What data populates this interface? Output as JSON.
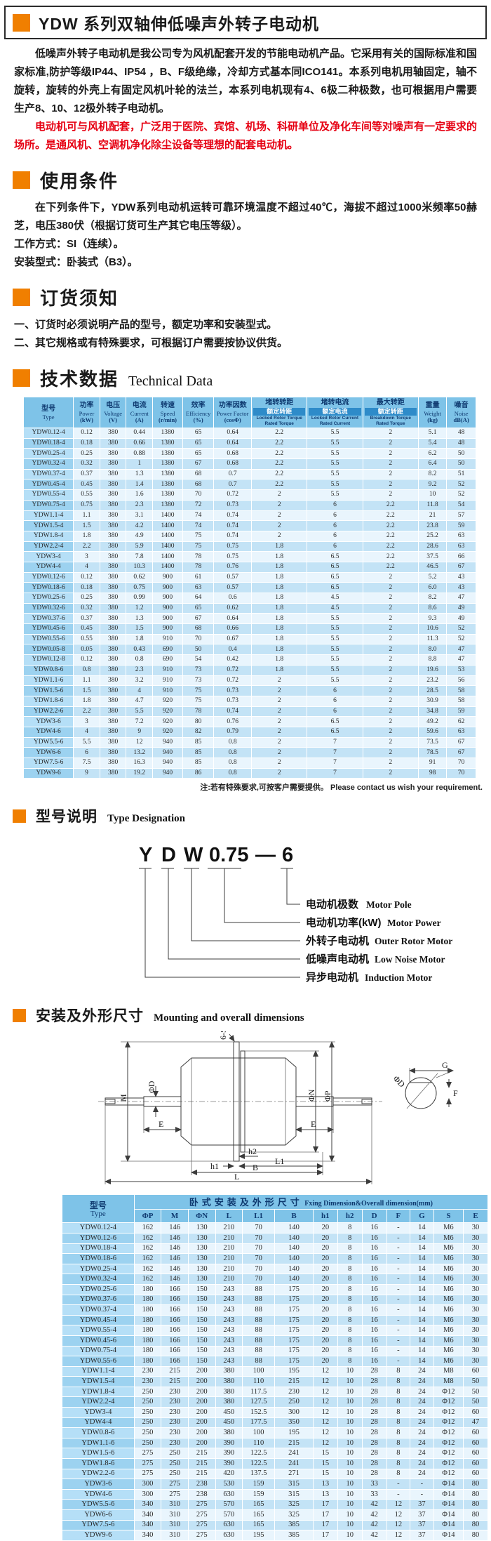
{
  "title": {
    "text": "YDW 系列双轴伸低噪声外转子电动机"
  },
  "intro": {
    "p1": "低噪声外转子电动机是我公司专为风机配套开发的节能电动机产品。它采用有关的国际标准和国家标准,防护等级IP44、IP54 ，B、F级绝缘，冷却方式基本同ICO141。本系列电机用轴固定，轴不旋转，旋转的外壳上有固定风机叶轮的法兰，本系列电机现有4、6极二种极数，也可根据用户需要生产8、10、12极外转子电动机。",
    "p2_red": "电动机可与风机配套，广泛用于医院、宾馆、机场、科研单位及净化车间等对噪声有一定要求的场所。是通风机、空调机净化除尘设备等理想的配套电动机。"
  },
  "sections": {
    "usage": {
      "title": "使用条件",
      "body": "在下列条件下，YDW系列电动机运转可靠环境温度不超过40℃，海拔不超过1000米频率50赫芝，电压380伏（根据订货可生产其它电压等级）。",
      "work_mode": "工作方式：SI（连续）。",
      "mount_type": "安装型式：卧装式（B3）。"
    },
    "ordering": {
      "title": "订货须知",
      "items": [
        "一、订货时必须说明产品的型号，额定功率和安装型式。",
        "二、其它规格或有特殊要求，可根据订户需要按协议供货。"
      ]
    },
    "technical": {
      "title": "技术数据",
      "subtitle": "Technical Data",
      "note": "注:若有特殊要求,可按客户需要提供。 Please contact us wish your requirement."
    },
    "designation": {
      "title": "型号说明",
      "subtitle": "Type Designation",
      "code": [
        "Y",
        "D",
        "W",
        "0.75",
        "—",
        "6"
      ],
      "labels": [
        {
          "cn": "电动机极数",
          "en": "Motor Pole"
        },
        {
          "cn": "电动机功率(kW)",
          "en": "Motor Power"
        },
        {
          "cn": "外转子电动机",
          "en": "Outer Rotor Motor"
        },
        {
          "cn": "低噪声电动机",
          "en": "Low Noise Motor"
        },
        {
          "cn": "异步电动机",
          "en": "Induction Motor"
        }
      ]
    },
    "mounting": {
      "title": "安装及外形尺寸",
      "subtitle": "Mounting and overall dimensions",
      "drawing_labels": {
        "bolts": "6-S",
        "m": "M",
        "phiD": "ΦD",
        "e_left": "E",
        "e_right": "E",
        "phiN": "ΦN",
        "phiP": "ΦP",
        "g": "G",
        "f": "F",
        "phiD2": "ΦD",
        "h1": "h1",
        "h2": "h2",
        "l1": "L1",
        "b": "B",
        "l": "L"
      }
    }
  },
  "tech_table": {
    "col_headers": [
      {
        "cn": "型号",
        "en": "Type"
      },
      {
        "cn": "功率",
        "en": "Power",
        "unit": "(kW)"
      },
      {
        "cn": "电压",
        "en": "Voltage",
        "unit": "(V)"
      },
      {
        "cn": "电流",
        "en": "Current",
        "unit": "(A)"
      },
      {
        "cn": "转速",
        "en": "Speed",
        "unit": "(r/min)"
      },
      {
        "cn": "效率",
        "en": "Efficiency",
        "unit": "(%)"
      },
      {
        "cn": "功率因数",
        "en": "Power Factor",
        "unit": "(cosΦ)"
      },
      {
        "cn": "堵转转距",
        "cn2": "额定转距",
        "en": "Locked Rotor Torque",
        "en2": "Rated Torque"
      },
      {
        "cn": "堵转电流",
        "cn2": "额定电流",
        "en": "Locked Rotor Current",
        "en2": "Rated Current"
      },
      {
        "cn": "最大转距",
        "cn2": "额定转距",
        "en": "Breakdown Torque",
        "en2": "Rated Torque"
      },
      {
        "cn": "重量",
        "en": "Weight",
        "unit": "(kg)"
      },
      {
        "cn": "噪音",
        "en": "Noise",
        "unit": "dB(A)"
      }
    ],
    "rows": [
      [
        "YDW0.12-4",
        "0.12",
        "380",
        "0.44",
        "1380",
        "65",
        "0.64",
        "2.2",
        "5.5",
        "2",
        "5.1",
        "48"
      ],
      [
        "YDW0.18-4",
        "0.18",
        "380",
        "0.66",
        "1380",
        "65",
        "0.64",
        "2.2",
        "5.5",
        "2",
        "5.4",
        "48"
      ],
      [
        "YDW0.25-4",
        "0.25",
        "380",
        "0.88",
        "1380",
        "65",
        "0.68",
        "2.2",
        "5.5",
        "2",
        "6.2",
        "50"
      ],
      [
        "YDW0.32-4",
        "0.32",
        "380",
        "1",
        "1380",
        "67",
        "0.68",
        "2.2",
        "5.5",
        "2",
        "6.4",
        "50"
      ],
      [
        "YDW0.37-4",
        "0.37",
        "380",
        "1.3",
        "1380",
        "68",
        "0.7",
        "2.2",
        "5.5",
        "2",
        "8.2",
        "51"
      ],
      [
        "YDW0.45-4",
        "0.45",
        "380",
        "1.4",
        "1380",
        "68",
        "0.7",
        "2.2",
        "5.5",
        "2",
        "9.2",
        "52"
      ],
      [
        "YDW0.55-4",
        "0.55",
        "380",
        "1.6",
        "1380",
        "70",
        "0.72",
        "2",
        "5.5",
        "2",
        "10",
        "52"
      ],
      [
        "YDW0.75-4",
        "0.75",
        "380",
        "2.3",
        "1380",
        "72",
        "0.73",
        "2",
        "6",
        "2.2",
        "11.8",
        "54"
      ],
      [
        "YDW1.1-4",
        "1.1",
        "380",
        "3.1",
        "1400",
        "74",
        "0.74",
        "2",
        "6",
        "2.2",
        "21",
        "57"
      ],
      [
        "YDW1.5-4",
        "1.5",
        "380",
        "4.2",
        "1400",
        "74",
        "0.74",
        "2",
        "6",
        "2.2",
        "23.8",
        "59"
      ],
      [
        "YDW1.8-4",
        "1.8",
        "380",
        "4.9",
        "1400",
        "75",
        "0.74",
        "2",
        "6",
        "2.2",
        "25.2",
        "63"
      ],
      [
        "YDW2.2-4",
        "2.2",
        "380",
        "5.9",
        "1400",
        "75",
        "0.75",
        "1.8",
        "6",
        "2.2",
        "28.6",
        "63"
      ],
      [
        "YDW3-4",
        "3",
        "380",
        "7.8",
        "1400",
        "78",
        "0.75",
        "1.8",
        "6.5",
        "2.2",
        "37.5",
        "66"
      ],
      [
        "YDW4-4",
        "4",
        "380",
        "10.3",
        "1400",
        "78",
        "0.76",
        "1.8",
        "6.5",
        "2.2",
        "46.5",
        "67"
      ],
      [
        "YDW0.12-6",
        "0.12",
        "380",
        "0.62",
        "900",
        "61",
        "0.57",
        "1.8",
        "6.5",
        "2",
        "5.2",
        "43"
      ],
      [
        "YDW0.18-6",
        "0.18",
        "380",
        "0.75",
        "900",
        "63",
        "0.57",
        "1.8",
        "6.5",
        "2",
        "6.0",
        "43"
      ],
      [
        "YDW0.25-6",
        "0.25",
        "380",
        "0.99",
        "900",
        "64",
        "0.6",
        "1.8",
        "4.5",
        "2",
        "8.2",
        "47"
      ],
      [
        "YDW0.32-6",
        "0.32",
        "380",
        "1.2",
        "900",
        "65",
        "0.62",
        "1.8",
        "4.5",
        "2",
        "8.6",
        "49"
      ],
      [
        "YDW0.37-6",
        "0.37",
        "380",
        "1.3",
        "900",
        "67",
        "0.64",
        "1.8",
        "5.5",
        "2",
        "9.3",
        "49"
      ],
      [
        "YDW0.45-6",
        "0.45",
        "380",
        "1.5",
        "900",
        "68",
        "0.66",
        "1.8",
        "5.5",
        "2",
        "10.6",
        "52"
      ],
      [
        "YDW0.55-6",
        "0.55",
        "380",
        "1.8",
        "910",
        "70",
        "0.67",
        "1.8",
        "5.5",
        "2",
        "11.3",
        "52"
      ],
      [
        "YDW0.05-8",
        "0.05",
        "380",
        "0.43",
        "690",
        "50",
        "0.4",
        "1.8",
        "5.5",
        "2",
        "8.0",
        "47"
      ],
      [
        "YDW0.12-8",
        "0.12",
        "380",
        "0.8",
        "690",
        "54",
        "0.42",
        "1.8",
        "5.5",
        "2",
        "8.8",
        "47"
      ],
      [
        "YDW0.8-6",
        "0.8",
        "380",
        "2.3",
        "910",
        "73",
        "0.72",
        "1.8",
        "5.5",
        "2",
        "19.6",
        "53"
      ],
      [
        "YDW1.1-6",
        "1.1",
        "380",
        "3.2",
        "910",
        "73",
        "0.72",
        "2",
        "5.5",
        "2",
        "23.2",
        "56"
      ],
      [
        "YDW1.5-6",
        "1.5",
        "380",
        "4",
        "910",
        "75",
        "0.73",
        "2",
        "6",
        "2",
        "28.5",
        "58"
      ],
      [
        "YDW1.8-6",
        "1.8",
        "380",
        "4.7",
        "920",
        "75",
        "0.73",
        "2",
        "6",
        "2",
        "30.9",
        "58"
      ],
      [
        "YDW2.2-6",
        "2.2",
        "380",
        "5.5",
        "920",
        "78",
        "0.74",
        "2",
        "6",
        "2",
        "34.8",
        "59"
      ],
      [
        "YDW3-6",
        "3",
        "380",
        "7.2",
        "920",
        "80",
        "0.76",
        "2",
        "6.5",
        "2",
        "49.2",
        "62"
      ],
      [
        "YDW4-6",
        "4",
        "380",
        "9",
        "920",
        "82",
        "0.79",
        "2",
        "6.5",
        "2",
        "59.6",
        "63"
      ],
      [
        "YDW5.5-6",
        "5.5",
        "380",
        "12",
        "940",
        "85",
        "0.8",
        "2",
        "7",
        "2",
        "73.5",
        "67"
      ],
      [
        "YDW6-6",
        "6",
        "380",
        "13.2",
        "940",
        "85",
        "0.8",
        "2",
        "7",
        "2",
        "78.5",
        "67"
      ],
      [
        "YDW7.5-6",
        "7.5",
        "380",
        "16.3",
        "940",
        "85",
        "0.8",
        "2",
        "7",
        "2",
        "91",
        "70"
      ],
      [
        "YDW9-6",
        "9",
        "380",
        "19.2",
        "940",
        "86",
        "0.8",
        "2",
        "7",
        "2",
        "98",
        "70"
      ]
    ]
  },
  "dim_table": {
    "type_header": {
      "cn": "型号",
      "en": "Type"
    },
    "span_header": {
      "cn": "卧式安装及外形尺寸",
      "en": "Fxing Dimension&Overall dimension(mm)"
    },
    "col_headers": [
      "ΦP",
      "M",
      "ΦN",
      "L",
      "L1",
      "B",
      "h1",
      "h2",
      "D",
      "F",
      "G",
      "S",
      "E"
    ],
    "rows": [
      [
        "YDW0.12-4",
        "162",
        "146",
        "130",
        "210",
        "70",
        "140",
        "20",
        "8",
        "16",
        "-",
        "14",
        "M6",
        "30"
      ],
      [
        "YDW0.12-6",
        "162",
        "146",
        "130",
        "210",
        "70",
        "140",
        "20",
        "8",
        "16",
        "-",
        "14",
        "M6",
        "30"
      ],
      [
        "YDW0.18-4",
        "162",
        "146",
        "130",
        "210",
        "70",
        "140",
        "20",
        "8",
        "16",
        "-",
        "14",
        "M6",
        "30"
      ],
      [
        "YDW0.18-6",
        "162",
        "146",
        "130",
        "210",
        "70",
        "140",
        "20",
        "8",
        "16",
        "-",
        "14",
        "M6",
        "30"
      ],
      [
        "YDW0.25-4",
        "162",
        "146",
        "130",
        "210",
        "70",
        "140",
        "20",
        "8",
        "16",
        "-",
        "14",
        "M6",
        "30"
      ],
      [
        "YDW0.32-4",
        "162",
        "146",
        "130",
        "210",
        "70",
        "140",
        "20",
        "8",
        "16",
        "-",
        "14",
        "M6",
        "30"
      ],
      [
        "YDW0.25-6",
        "180",
        "166",
        "150",
        "243",
        "88",
        "175",
        "20",
        "8",
        "16",
        "-",
        "14",
        "M6",
        "30"
      ],
      [
        "YDW0.37-6",
        "180",
        "166",
        "150",
        "243",
        "88",
        "175",
        "20",
        "8",
        "16",
        "-",
        "14",
        "M6",
        "30"
      ],
      [
        "YDW0.37-4",
        "180",
        "166",
        "150",
        "243",
        "88",
        "175",
        "20",
        "8",
        "16",
        "-",
        "14",
        "M6",
        "30"
      ],
      [
        "YDW0.45-4",
        "180",
        "166",
        "150",
        "243",
        "88",
        "175",
        "20",
        "8",
        "16",
        "-",
        "14",
        "M6",
        "30"
      ],
      [
        "YDW0.55-4",
        "180",
        "166",
        "150",
        "243",
        "88",
        "175",
        "20",
        "8",
        "16",
        "-",
        "14",
        "M6",
        "30"
      ],
      [
        "YDW0.45-6",
        "180",
        "166",
        "150",
        "243",
        "88",
        "175",
        "20",
        "8",
        "16",
        "-",
        "14",
        "M6",
        "30"
      ],
      [
        "YDW0.75-4",
        "180",
        "166",
        "150",
        "243",
        "88",
        "175",
        "20",
        "8",
        "16",
        "-",
        "14",
        "M6",
        "30"
      ],
      [
        "YDW0.55-6",
        "180",
        "166",
        "150",
        "243",
        "88",
        "175",
        "20",
        "8",
        "16",
        "-",
        "14",
        "M6",
        "30"
      ],
      [
        "YDW1.1-4",
        "230",
        "215",
        "200",
        "380",
        "100",
        "195",
        "12",
        "10",
        "28",
        "8",
        "24",
        "M8",
        "60"
      ],
      [
        "YDW1.5-4",
        "230",
        "215",
        "200",
        "380",
        "110",
        "215",
        "12",
        "10",
        "28",
        "8",
        "24",
        "M8",
        "50"
      ],
      [
        "YDW1.8-4",
        "250",
        "230",
        "200",
        "380",
        "117.5",
        "230",
        "12",
        "10",
        "28",
        "8",
        "24",
        "Φ12",
        "50"
      ],
      [
        "YDW2.2-4",
        "250",
        "230",
        "200",
        "380",
        "127.5",
        "250",
        "12",
        "10",
        "28",
        "8",
        "24",
        "Φ12",
        "50"
      ],
      [
        "YDW3-4",
        "250",
        "230",
        "200",
        "450",
        "152.5",
        "300",
        "12",
        "10",
        "28",
        "8",
        "24",
        "Φ12",
        "60"
      ],
      [
        "YDW4-4",
        "250",
        "230",
        "200",
        "450",
        "177.5",
        "350",
        "12",
        "10",
        "28",
        "8",
        "24",
        "Φ12",
        "47"
      ],
      [
        "YDW0.8-6",
        "250",
        "230",
        "200",
        "380",
        "100",
        "195",
        "12",
        "10",
        "28",
        "8",
        "24",
        "Φ12",
        "60"
      ],
      [
        "YDW1.1-6",
        "250",
        "230",
        "200",
        "390",
        "110",
        "215",
        "12",
        "10",
        "28",
        "8",
        "24",
        "Φ12",
        "60"
      ],
      [
        "YDW1.5-6",
        "275",
        "250",
        "215",
        "390",
        "122.5",
        "241",
        "15",
        "10",
        "28",
        "8",
        "24",
        "Φ12",
        "60"
      ],
      [
        "YDW1.8-6",
        "275",
        "250",
        "215",
        "390",
        "122.5",
        "241",
        "15",
        "10",
        "28",
        "8",
        "24",
        "Φ12",
        "60"
      ],
      [
        "YDW2.2-6",
        "275",
        "250",
        "215",
        "420",
        "137.5",
        "271",
        "15",
        "10",
        "28",
        "8",
        "24",
        "Φ12",
        "60"
      ],
      [
        "YDW3-6",
        "300",
        "275",
        "238",
        "530",
        "159",
        "315",
        "13",
        "10",
        "33",
        "-",
        "-",
        "Φ14",
        "80"
      ],
      [
        "YDW4-6",
        "300",
        "275",
        "238",
        "630",
        "159",
        "315",
        "13",
        "10",
        "33",
        "-",
        "-",
        "Φ14",
        "80"
      ],
      [
        "YDW5.5-6",
        "340",
        "310",
        "275",
        "570",
        "165",
        "325",
        "17",
        "10",
        "42",
        "12",
        "37",
        "Φ14",
        "80"
      ],
      [
        "YDW6-6",
        "340",
        "310",
        "275",
        "570",
        "165",
        "325",
        "17",
        "10",
        "42",
        "12",
        "37",
        "Φ14",
        "80"
      ],
      [
        "YDW7.5-6",
        "340",
        "310",
        "275",
        "630",
        "165",
        "385",
        "17",
        "10",
        "42",
        "12",
        "37",
        "Φ14",
        "80"
      ],
      [
        "YDW9-6",
        "340",
        "310",
        "275",
        "630",
        "195",
        "385",
        "17",
        "10",
        "42",
        "12",
        "37",
        "Φ14",
        "80"
      ]
    ]
  },
  "colors": {
    "accent_orange": "#F07F00",
    "red_text": "#E60012",
    "table_header_bg": "#7EC3E8",
    "table_header_dark_strip": "#2E8BC9",
    "header_text": "#0F3A70",
    "row_light": "#E9F5FD",
    "row_dark": "#C3E3F6"
  }
}
